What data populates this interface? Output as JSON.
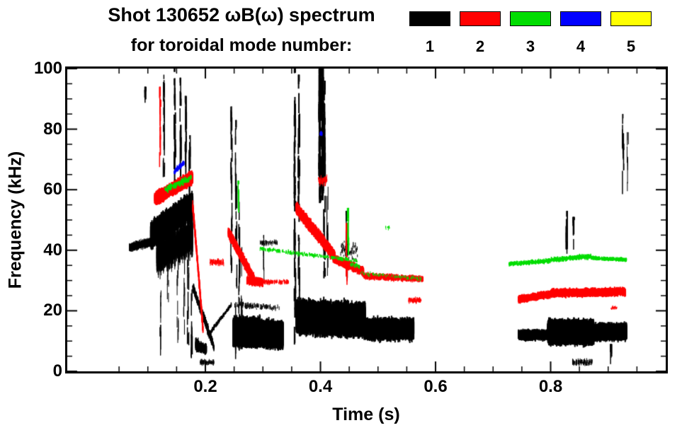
{
  "title": {
    "line1": "Shot 130652 ωB(ω) spectrum",
    "line2": "for toroidal mode number:"
  },
  "legend": {
    "modes": [
      {
        "label": "1",
        "color": "#000000"
      },
      {
        "label": "2",
        "color": "#ff0000"
      },
      {
        "label": "3",
        "color": "#00dd00"
      },
      {
        "label": "4",
        "color": "#0000ff"
      },
      {
        "label": "5",
        "color": "#ffff00"
      }
    ]
  },
  "axes": {
    "xlabel": "Time (s)",
    "ylabel": "Frequency (kHz)",
    "x_tick_labels": [
      "0.2",
      "0.4",
      "0.6",
      "0.8"
    ],
    "y_tick_labels": [
      "0",
      "20",
      "40",
      "60",
      "80",
      "100"
    ]
  },
  "chart_data": {
    "type": "scatter",
    "title": "Shot 130652 ωB(ω) spectrum for toroidal mode number",
    "xlabel": "Time (s)",
    "ylabel": "Frequency (kHz)",
    "xlim": [
      -0.04,
      1.0
    ],
    "ylim": [
      0,
      100
    ],
    "x_ticks": [
      0.2,
      0.4,
      0.6,
      0.8
    ],
    "y_ticks": [
      0,
      20,
      40,
      60,
      80,
      100
    ],
    "x_minor_step": 0.05,
    "y_minor_step": 5,
    "legend_position": "top-right",
    "grid": false,
    "cluster_format": "[t_start_s, t_end_s, freq_start_kHz, freq_end_kHz, center_jitter_kHz, streak_min_kHz, streak_max_kHz, n_points, px_width]",
    "spike_format": "[t_s, freq_min_kHz, freq_max_kHz, px_width, n_dashes]",
    "series": [
      {
        "name": "n=1",
        "color": "#000000",
        "clusters": [
          [
            0.068,
            0.112,
            41,
            43,
            1.2,
            0.5,
            2,
            900,
            1
          ],
          [
            0.105,
            0.178,
            45,
            55,
            2.5,
            2,
            7,
            2600,
            2
          ],
          [
            0.115,
            0.178,
            38,
            45,
            3,
            4,
            12,
            500,
            1
          ],
          [
            0.178,
            0.215,
            28,
            8,
            1.5,
            0.5,
            2,
            350,
            1.5
          ],
          [
            0.183,
            0.202,
            9,
            7,
            1.5,
            1,
            3,
            200,
            1.5
          ],
          [
            0.205,
            0.245,
            12,
            22,
            0.6,
            0.4,
            1,
            160,
            1.5
          ],
          [
            0.248,
            0.335,
            13,
            12,
            2,
            3,
            8,
            2600,
            2
          ],
          [
            0.252,
            0.295,
            13,
            13,
            1.5,
            5,
            9,
            800,
            2
          ],
          [
            0.25,
            0.33,
            22,
            21,
            1,
            0.4,
            1.5,
            120,
            1
          ],
          [
            0.295,
            0.325,
            42.5,
            42.5,
            1,
            0.4,
            1.2,
            60,
            1
          ],
          [
            0.358,
            0.478,
            18,
            17,
            3,
            4,
            9,
            3600,
            2
          ],
          [
            0.478,
            0.562,
            14,
            14,
            2,
            2.5,
            6,
            1700,
            2
          ],
          [
            0.435,
            0.465,
            40,
            40,
            4,
            0.5,
            1.5,
            60,
            1
          ],
          [
            0.744,
            0.795,
            12,
            12,
            1,
            1,
            3,
            700,
            2
          ],
          [
            0.795,
            0.875,
            13,
            13,
            2,
            3,
            7,
            2200,
            2
          ],
          [
            0.875,
            0.932,
            13,
            13,
            1.5,
            2,
            5,
            900,
            2
          ],
          [
            0.838,
            0.872,
            3,
            3,
            1,
            0.5,
            1.5,
            90,
            1
          ],
          [
            0.19,
            0.215,
            3,
            3,
            1,
            0.5,
            1.5,
            60,
            1
          ]
        ],
        "spikes": [
          [
            0.0955,
            88,
            93,
            1.5,
            8
          ],
          [
            0.122,
            5,
            45,
            1,
            14
          ],
          [
            0.135,
            10,
            45,
            1,
            12
          ],
          [
            0.152,
            5,
            50,
            1,
            14
          ],
          [
            0.163,
            8,
            50,
            1,
            12
          ],
          [
            0.17,
            3,
            55,
            1.5,
            16
          ],
          [
            0.176,
            2,
            60,
            1.5,
            18
          ],
          [
            0.128,
            60,
            97,
            1.5,
            22
          ],
          [
            0.147,
            58,
            100,
            2,
            30
          ],
          [
            0.157,
            60,
            96,
            1.5,
            22
          ],
          [
            0.166,
            62,
            90,
            1.5,
            18
          ],
          [
            0.173,
            57,
            77,
            1.5,
            14
          ],
          [
            0.2455,
            28,
            88,
            1.5,
            26
          ],
          [
            0.2535,
            4,
            82,
            1.5,
            30
          ],
          [
            0.259,
            6,
            55,
            1.5,
            20
          ],
          [
            0.263,
            8,
            40,
            1,
            12
          ],
          [
            0.302,
            30,
            44,
            1,
            10
          ],
          [
            0.3555,
            8,
            100,
            2,
            40
          ],
          [
            0.3625,
            12,
            97,
            2,
            34
          ],
          [
            0.399,
            55,
            100,
            3,
            45
          ],
          [
            0.4035,
            55,
            99,
            3,
            45
          ],
          [
            0.407,
            30,
            95,
            2,
            30
          ],
          [
            0.412,
            25,
            60,
            1,
            12
          ],
          [
            0.4455,
            30,
            52,
            1.5,
            14
          ],
          [
            0.828,
            38,
            52,
            1.5,
            12
          ],
          [
            0.84,
            40,
            50,
            1.5,
            10
          ],
          [
            0.926,
            55,
            84,
            1.5,
            14
          ],
          [
            0.934,
            58,
            78,
            1,
            8
          ],
          [
            0.905,
            1,
            8,
            1.5,
            8
          ]
        ]
      },
      {
        "name": "n=2",
        "color": "#ff0000",
        "clusters": [
          [
            0.112,
            0.178,
            57,
            64,
            1.5,
            1,
            3.5,
            1400,
            2
          ],
          [
            0.178,
            0.196,
            55,
            14,
            1.5,
            1,
            3,
            260,
            1.5
          ],
          [
            0.208,
            0.232,
            36,
            36,
            1,
            0.5,
            1.5,
            90,
            1
          ],
          [
            0.24,
            0.285,
            46,
            30,
            1.2,
            1,
            3,
            700,
            2
          ],
          [
            0.272,
            0.3,
            30,
            29.5,
            0.8,
            1,
            2.5,
            300,
            1.5
          ],
          [
            0.3,
            0.345,
            29.5,
            29.5,
            0.8,
            0.4,
            1.2,
            120,
            1
          ],
          [
            0.358,
            0.425,
            54,
            38,
            1.3,
            1,
            3.5,
            900,
            2
          ],
          [
            0.425,
            0.475,
            37,
            33,
            1,
            0.8,
            2.5,
            450,
            2
          ],
          [
            0.475,
            0.578,
            31.5,
            30.5,
            0.8,
            0.5,
            1.8,
            450,
            1.5
          ],
          [
            0.553,
            0.575,
            23.5,
            23.5,
            1,
            0.4,
            1.2,
            90,
            1
          ],
          [
            0.396,
            0.412,
            63,
            63,
            1.8,
            0.5,
            1.5,
            70,
            1
          ],
          [
            0.744,
            0.8,
            23.8,
            25.5,
            0.9,
            0.8,
            2,
            600,
            2
          ],
          [
            0.8,
            0.93,
            25.8,
            26.3,
            1,
            1,
            2.2,
            1100,
            2
          ],
          [
            0.905,
            0.915,
            21,
            21,
            0.6,
            0.3,
            0.8,
            30,
            1
          ]
        ],
        "spikes": [
          [
            0.1215,
            63,
            93,
            1.5,
            16
          ],
          [
            0.4455,
            28,
            48,
            1.5,
            12
          ]
        ]
      },
      {
        "name": "n=3",
        "color": "#00dd00",
        "clusters": [
          [
            0.13,
            0.176,
            60,
            64,
            1.2,
            0.4,
            1.2,
            160,
            1.5
          ],
          [
            0.295,
            0.465,
            40.5,
            36.5,
            0.7,
            0.3,
            1,
            220,
            1.5
          ],
          [
            0.452,
            0.468,
            35.5,
            34.5,
            0.8,
            0.3,
            0.9,
            50,
            1
          ],
          [
            0.47,
            0.575,
            32.5,
            30.5,
            0.8,
            0.3,
            0.9,
            90,
            1
          ],
          [
            0.512,
            0.52,
            47.5,
            47.5,
            0.8,
            0.3,
            0.8,
            12,
            1
          ],
          [
            0.728,
            0.8,
            35.5,
            36.5,
            0.7,
            0.4,
            1.2,
            260,
            1.5
          ],
          [
            0.8,
            0.87,
            36.8,
            38,
            0.7,
            0.4,
            1.3,
            300,
            1.5
          ],
          [
            0.87,
            0.932,
            37.5,
            36.8,
            0.6,
            0.4,
            1.1,
            240,
            1.5
          ]
        ],
        "spikes": [
          [
            0.448,
            38,
            53,
            1.5,
            12
          ],
          [
            0.2575,
            52,
            62,
            1,
            8
          ]
        ]
      },
      {
        "name": "n=4",
        "color": "#0000ff",
        "clusters": [
          [
            0.146,
            0.163,
            66,
            69,
            0.8,
            0.4,
            1.2,
            90,
            1.5
          ],
          [
            0.399,
            0.403,
            78.5,
            78.5,
            0.8,
            0.4,
            1,
            25,
            1
          ]
        ],
        "spikes": []
      },
      {
        "name": "n=5",
        "color": "#ffff00",
        "clusters": [],
        "spikes": []
      }
    ]
  }
}
